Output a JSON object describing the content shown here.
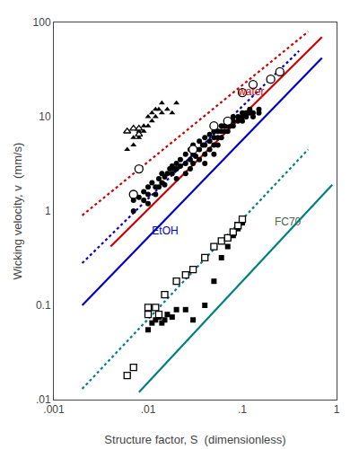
{
  "chart_data": {
    "type": "scatter",
    "xlabel": "Structure factor, S  (dimensionless)",
    "ylabel": "Wicking velocity, v  (mm/s)",
    "log": true,
    "grid": false,
    "xlim": [
      0.001,
      1.0
    ],
    "ylim": [
      0.01,
      100
    ],
    "xticks": [
      {
        "value": 0.001,
        "label": ".001"
      },
      {
        "value": 0.01,
        "label": ".01"
      },
      {
        "value": 0.1,
        "label": ".1"
      },
      1
    ],
    "yticks": [
      {
        "value": 0.01,
        "label": ".01"
      },
      0.1,
      1,
      10,
      100
    ],
    "series": [
      {
        "type": "line",
        "color": "#cc0000",
        "line_style": "solid",
        "x": [
          0.004,
          0.7
        ],
        "values": [
          0.42,
          70
        ]
      },
      {
        "type": "line",
        "color": "#cc0000",
        "line_style": "dotted",
        "x": [
          0.002,
          0.5
        ],
        "values": [
          0.9,
          80
        ]
      },
      {
        "type": "line",
        "color": "#0000cc",
        "line_style": "solid",
        "x": [
          0.002,
          0.7
        ],
        "values": [
          0.1,
          42
        ]
      },
      {
        "type": "line",
        "color": "#0000cc",
        "line_style": "dotted",
        "x": [
          0.002,
          0.4
        ],
        "values": [
          0.28,
          50
        ]
      },
      {
        "type": "line",
        "color": "#008080",
        "line_style": "solid",
        "x": [
          0.008,
          0.9
        ],
        "values": [
          0.012,
          1.9
        ]
      },
      {
        "type": "line",
        "color": "#008080",
        "line_style": "dotted",
        "x": [
          0.002,
          0.5
        ],
        "values": [
          0.013,
          4.5
        ]
      },
      {
        "type": "scatter",
        "marker": "circle",
        "color": "#000000",
        "x": [
          0.007,
          0.007,
          0.008,
          0.009,
          0.009,
          0.01,
          0.01,
          0.01,
          0.011,
          0.012,
          0.012,
          0.013,
          0.013,
          0.014,
          0.014,
          0.015,
          0.015,
          0.016,
          0.017,
          0.018,
          0.018,
          0.019,
          0.02,
          0.02,
          0.02,
          0.022,
          0.022,
          0.025,
          0.025,
          0.025,
          0.028,
          0.028,
          0.028,
          0.03,
          0.03,
          0.03,
          0.032,
          0.032,
          0.035,
          0.035,
          0.035,
          0.038,
          0.04,
          0.04,
          0.04,
          0.04,
          0.045,
          0.045,
          0.045,
          0.05,
          0.05,
          0.05,
          0.05,
          0.055,
          0.055,
          0.055,
          0.06,
          0.06,
          0.06,
          0.065,
          0.065,
          0.07,
          0.07,
          0.07,
          0.075,
          0.075,
          0.08,
          0.08,
          0.08,
          0.09,
          0.09,
          0.1,
          0.1,
          0.1,
          0.11,
          0.11,
          0.12,
          0.12,
          0.13,
          0.13,
          0.15,
          0.15
        ],
        "values": [
          1.3,
          1.0,
          1.4,
          1.6,
          1.3,
          1.8,
          1.5,
          1.2,
          2.0,
          1.8,
          1.5,
          2.2,
          1.8,
          2.5,
          2.0,
          2.3,
          1.9,
          2.5,
          2.8,
          3.0,
          2.5,
          2.8,
          3.2,
          2.8,
          2.2,
          3.5,
          3.0,
          4.0,
          3.2,
          2.5,
          4.5,
          3.5,
          2.8,
          5.0,
          4.0,
          3.2,
          4.5,
          3.8,
          5.5,
          4.5,
          3.5,
          5.0,
          6.0,
          5.0,
          4.0,
          3.2,
          6.5,
          5.5,
          4.5,
          7.0,
          6.0,
          5.0,
          4.0,
          7.0,
          6.0,
          5.0,
          8.0,
          7.0,
          6.0,
          8.0,
          7.0,
          9.0,
          8.0,
          7.0,
          9.0,
          8.0,
          10.0,
          9.0,
          8.0,
          10.0,
          9.0,
          11.0,
          10.0,
          9.0,
          11.0,
          10.0,
          12.0,
          11.0,
          11.0,
          10.0,
          12.0,
          11.0
        ]
      },
      {
        "type": "scatter",
        "marker": "circle-open",
        "color": "#000000",
        "x": [
          0.007,
          0.008,
          0.03,
          0.05,
          0.07,
          0.1,
          0.13,
          0.2,
          0.25
        ],
        "values": [
          1.5,
          2.8,
          4.5,
          8.0,
          9.0,
          18.0,
          22.0,
          25.0,
          30.0
        ]
      },
      {
        "type": "scatter",
        "marker": "triangle",
        "color": "#000000",
        "x": [
          0.006,
          0.007,
          0.007,
          0.008,
          0.008,
          0.009,
          0.009,
          0.01,
          0.01,
          0.011,
          0.011,
          0.012,
          0.012,
          0.013,
          0.014,
          0.014,
          0.016,
          0.018,
          0.02
        ],
        "values": [
          4.5,
          6.0,
          5.0,
          7.0,
          6.0,
          8.0,
          7.0,
          10.0,
          8.0,
          11.0,
          9.0,
          12.0,
          10.0,
          12.0,
          14.0,
          11.0,
          12.0,
          11.0,
          14.0
        ]
      },
      {
        "type": "scatter",
        "marker": "triangle-open",
        "color": "#000000",
        "x": [
          0.006,
          0.007,
          0.008,
          0.008
        ],
        "values": [
          7.0,
          7.5,
          7.5,
          6.5
        ]
      },
      {
        "type": "scatter",
        "marker": "square",
        "color": "#000000",
        "x": [
          0.01,
          0.011,
          0.012,
          0.013,
          0.014,
          0.015,
          0.016,
          0.018,
          0.02,
          0.025,
          0.03,
          0.04,
          0.05,
          0.06,
          0.07,
          0.08,
          0.09,
          0.1
        ],
        "values": [
          0.055,
          0.065,
          0.07,
          0.075,
          0.065,
          0.07,
          0.08,
          0.075,
          0.09,
          0.09,
          0.07,
          0.1,
          0.18,
          0.32,
          0.42,
          0.55,
          0.65,
          0.75
        ]
      },
      {
        "type": "scatter",
        "marker": "square-open",
        "color": "#000000",
        "x": [
          0.006,
          0.007,
          0.01,
          0.01,
          0.012,
          0.013,
          0.015,
          0.02,
          0.025,
          0.03,
          0.04,
          0.05,
          0.06,
          0.07,
          0.08,
          0.09,
          0.1
        ],
        "values": [
          0.018,
          0.022,
          0.08,
          0.095,
          0.095,
          0.08,
          0.13,
          0.18,
          0.21,
          0.24,
          0.32,
          0.42,
          0.48,
          0.52,
          0.6,
          0.7,
          0.82
        ]
      }
    ],
    "annotations": [
      {
        "text": "water",
        "x": 0.09,
        "y": 18.0,
        "color": "#cc0000"
      },
      {
        "text": "EtOH",
        "x": 0.011,
        "y": 0.6,
        "color": "#0000cc"
      },
      {
        "text": "FC70",
        "x": 0.22,
        "y": 0.75,
        "color": "#4a6741"
      }
    ]
  }
}
